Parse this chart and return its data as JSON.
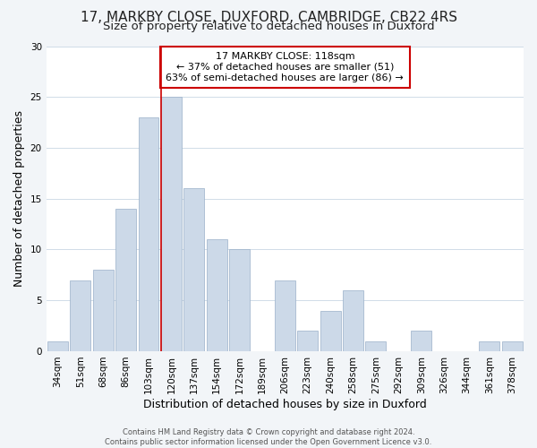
{
  "title": "17, MARKBY CLOSE, DUXFORD, CAMBRIDGE, CB22 4RS",
  "subtitle": "Size of property relative to detached houses in Duxford",
  "xlabel": "Distribution of detached houses by size in Duxford",
  "ylabel": "Number of detached properties",
  "bar_color": "#ccd9e8",
  "bar_edge_color": "#9ab0c8",
  "background_color": "#f2f5f8",
  "plot_bg_color": "#ffffff",
  "grid_color": "#d0dce8",
  "categories": [
    "34sqm",
    "51sqm",
    "68sqm",
    "86sqm",
    "103sqm",
    "120sqm",
    "137sqm",
    "154sqm",
    "172sqm",
    "189sqm",
    "206sqm",
    "223sqm",
    "240sqm",
    "258sqm",
    "275sqm",
    "292sqm",
    "309sqm",
    "326sqm",
    "344sqm",
    "361sqm",
    "378sqm"
  ],
  "values": [
    1,
    7,
    8,
    14,
    23,
    25,
    16,
    11,
    10,
    0,
    7,
    2,
    4,
    6,
    1,
    0,
    2,
    0,
    0,
    1,
    1
  ],
  "vline_color": "#cc0000",
  "vline_bar_index": 5,
  "annotation_title": "17 MARKBY CLOSE: 118sqm",
  "annotation_line1": "← 37% of detached houses are smaller (51)",
  "annotation_line2": "63% of semi-detached houses are larger (86) →",
  "annotation_box_color": "#ffffff",
  "annotation_box_edge": "#cc0000",
  "footer1": "Contains HM Land Registry data © Crown copyright and database right 2024.",
  "footer2": "Contains public sector information licensed under the Open Government Licence v3.0.",
  "ylim": [
    0,
    30
  ],
  "yticks": [
    0,
    5,
    10,
    15,
    20,
    25,
    30
  ],
  "title_fontsize": 11,
  "subtitle_fontsize": 9.5,
  "tick_fontsize": 7.5,
  "ylabel_fontsize": 9,
  "xlabel_fontsize": 9,
  "annotation_fontsize": 8,
  "footer_fontsize": 6
}
